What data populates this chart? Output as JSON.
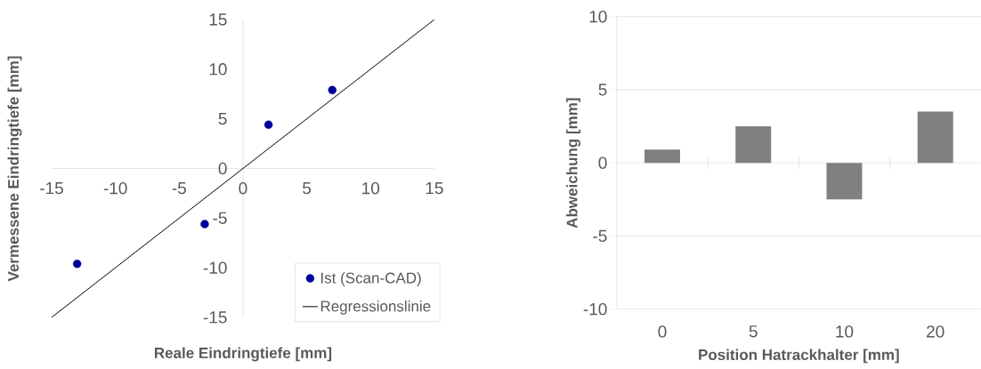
{
  "chart_data": [
    {
      "type": "scatter",
      "xlabel": "Reale Eindringtiefe [mm]",
      "ylabel": "Vermessene Eindringtiefe [mm]",
      "xlim": [
        -15,
        15
      ],
      "ylim": [
        -15,
        15
      ],
      "xticks": [
        -15,
        -10,
        -5,
        0,
        5,
        10,
        15
      ],
      "yticks": [
        -15,
        -10,
        -5,
        0,
        5,
        10,
        15
      ],
      "legend": "bottom right",
      "series": [
        {
          "name": "Ist (Scan-CAD)",
          "type": "scatter",
          "color": "#000099",
          "marker": "circle",
          "x": [
            -13,
            -3,
            2,
            7
          ],
          "values": [
            -9.6,
            -5.6,
            4.4,
            7.9
          ]
        },
        {
          "name": "Regressionslinie",
          "type": "line",
          "color": "#000000",
          "marker": "none",
          "x": [
            -15,
            15
          ],
          "values": [
            -15,
            15
          ]
        }
      ]
    },
    {
      "type": "bar",
      "xlabel": "Position Hatrackhalter [mm]",
      "ylabel": "Abweichung [mm]",
      "categories": [
        "0",
        "5",
        "10",
        "20"
      ],
      "values": [
        0.9,
        2.5,
        -2.5,
        3.5
      ],
      "color": "#808080",
      "ylim": [
        -10,
        10
      ],
      "yticks": [
        -10,
        -5,
        0,
        5,
        10
      ],
      "grid": "y"
    }
  ]
}
